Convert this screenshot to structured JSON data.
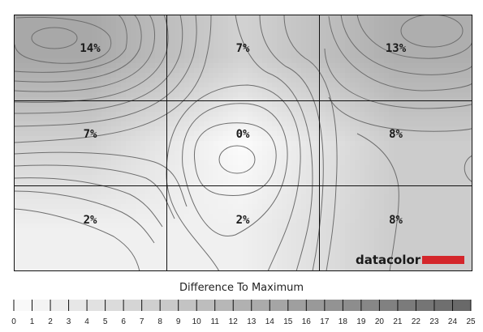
{
  "chart_data": {
    "type": "heatmap",
    "rows": 3,
    "cols": 3,
    "values": [
      [
        14,
        7,
        13
      ],
      [
        7,
        0,
        8
      ],
      [
        2,
        2,
        8
      ]
    ],
    "labels": [
      [
        "14%",
        "7%",
        "13%"
      ],
      [
        "7%",
        "0%",
        "8%"
      ],
      [
        "2%",
        "2%",
        "8%"
      ]
    ],
    "legend": {
      "title": "Difference To Maximum",
      "min": 0,
      "max": 25,
      "ticks": [
        "0",
        "1",
        "2",
        "3",
        "4",
        "5",
        "6",
        "7",
        "8",
        "9",
        "10",
        "11",
        "12",
        "13",
        "14",
        "15",
        "16",
        "17",
        "18",
        "19",
        "20",
        "21",
        "22",
        "23",
        "24",
        "25"
      ]
    },
    "grid": true
  },
  "brand": {
    "name": "datacolor",
    "accent_color": "#d4262b"
  }
}
